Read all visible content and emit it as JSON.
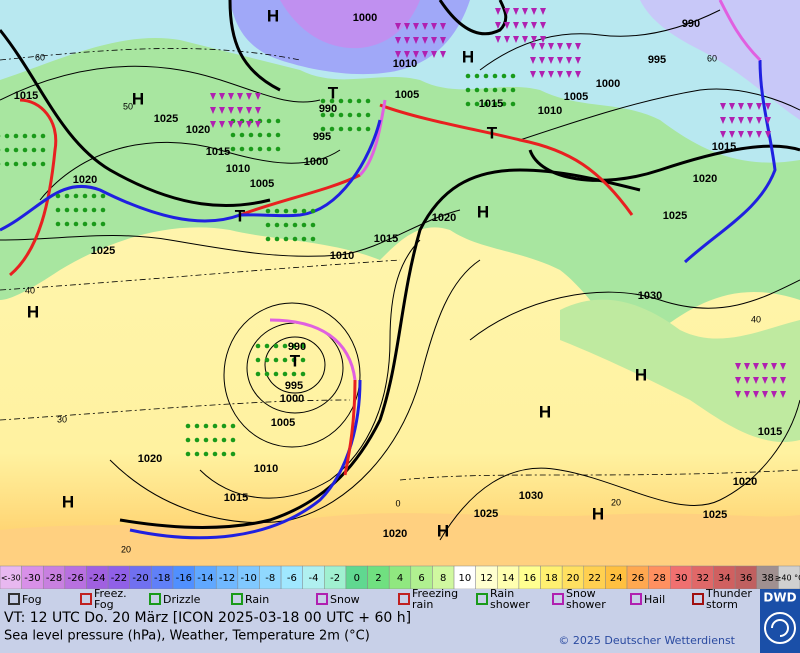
{
  "map": {
    "pressure_centers": [
      "H",
      "H",
      "H",
      "H",
      "H",
      "H",
      "H",
      "H",
      "H",
      "H",
      "T",
      "T",
      "T",
      "T"
    ],
    "isobar_labels": [
      "1000",
      "990",
      "995",
      "1010",
      "1005",
      "990",
      "995",
      "1000",
      "1015",
      "1025",
      "1020",
      "1015",
      "1010",
      "1005",
      "1020",
      "1025",
      "1010",
      "1015",
      "1020",
      "1015",
      "1010",
      "1005",
      "1000",
      "1015",
      "1020",
      "1025",
      "1030",
      "990",
      "995",
      "1000",
      "1005",
      "1010",
      "1015",
      "1020",
      "1020",
      "1025",
      "1030",
      "1025",
      "1020",
      "1015"
    ],
    "isotherm_labels": [
      "60",
      "50",
      "40",
      "30",
      "20",
      "0",
      "20",
      "40",
      "60"
    ]
  },
  "temperature_scale": {
    "labels": [
      "<-30",
      "-30",
      "-28",
      "-26",
      "-24",
      "-22",
      "-20",
      "-18",
      "-16",
      "-14",
      "-12",
      "-10",
      "-8",
      "-6",
      "-4",
      "-2",
      "0",
      "2",
      "4",
      "6",
      "8",
      "10",
      "12",
      "14",
      "16",
      "18",
      "20",
      "22",
      "24",
      "26",
      "28",
      "30",
      "32",
      "34",
      "36",
      "38",
      "≥40 °C"
    ],
    "colors": [
      "#e8b8f0",
      "#d890e8",
      "#c880e0",
      "#b870e0",
      "#a060e0",
      "#9060e8",
      "#7070f0",
      "#6080f8",
      "#5090ff",
      "#60a8ff",
      "#70b8ff",
      "#80c8ff",
      "#90d8ff",
      "#a0e8ff",
      "#b0f0f0",
      "#a0f0d0",
      "#60d890",
      "#70e080",
      "#90e880",
      "#b0f090",
      "#d0f8a0",
      "#ffffff",
      "#ffffd0",
      "#ffffb0",
      "#ffff90",
      "#fff070",
      "#ffe060",
      "#ffd050",
      "#ffc040",
      "#ffa850",
      "#ff9060",
      "#f07070",
      "#e06868",
      "#d06060",
      "#c06060",
      "#a09090",
      "#d0d0d0"
    ]
  },
  "weather_legend": [
    {
      "lines": [
        "Fog"
      ]
    },
    {
      "lines": [
        "Freez.",
        "Fog"
      ]
    },
    {
      "lines": [
        "Drizzle"
      ]
    },
    {
      "lines": [
        "Rain"
      ]
    },
    {
      "lines": [
        "Snow"
      ]
    },
    {
      "lines": [
        "Freezing",
        "rain"
      ]
    },
    {
      "lines": [
        "Rain",
        "shower"
      ]
    },
    {
      "lines": [
        "Snow",
        "shower"
      ]
    },
    {
      "lines": [
        "Hail"
      ]
    },
    {
      "lines": [
        "Thunder",
        "storm"
      ]
    }
  ],
  "footer": {
    "valid_time": "VT: 12 UTC Do.  20 März [ICON 2025-03-18  00 UTC + 60 h]",
    "description": "Sea level pressure (hPa), Weather, Temperature 2m (°C)",
    "copyright": "© 2025 Deutscher Wetterdienst",
    "logo": "DWD"
  }
}
